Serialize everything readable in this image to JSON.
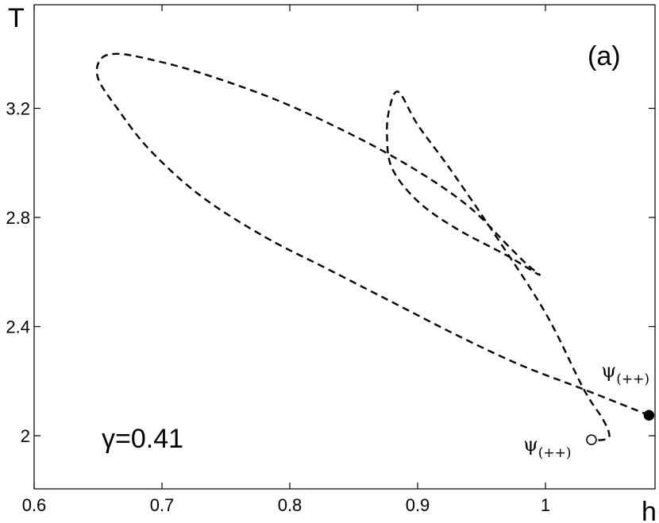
{
  "chart_data": {
    "type": "line",
    "title": "",
    "panel_label": "(a)",
    "parameter_label": "γ=0.41",
    "xlabel": "h",
    "ylabel": "T",
    "xlim": [
      0.6,
      1.085
    ],
    "ylim": [
      1.82,
      3.44
    ],
    "xticks": [
      0.6,
      0.7,
      0.8,
      0.9,
      1.0
    ],
    "xtick_labels": [
      "0.6",
      "0.7",
      "0.8",
      "0.9",
      "1"
    ],
    "yticks": [
      2.0,
      2.4,
      2.8,
      3.2
    ],
    "ytick_labels": [
      "2",
      "2.4",
      "2.8",
      "3.2"
    ],
    "grid": false,
    "series": [
      {
        "style": "dashed",
        "color": "#000000",
        "x": [
          1.081,
          1.03,
          0.98,
          0.93,
          0.88,
          0.83,
          0.78,
          0.73,
          0.69,
          0.665,
          0.65,
          0.652,
          0.665,
          0.69,
          0.73,
          0.79,
          0.85,
          0.9,
          0.94,
          0.97,
          0.985,
          0.995,
          0.97,
          0.93,
          0.9,
          0.88,
          0.876,
          0.878,
          0.885,
          0.9,
          0.925,
          0.96,
          1.0,
          1.03,
          1.045,
          1.05,
          1.045,
          1.037
        ],
        "y": [
          2.075,
          2.17,
          2.26,
          2.37,
          2.49,
          2.61,
          2.73,
          2.88,
          3.05,
          3.2,
          3.31,
          3.38,
          3.4,
          3.38,
          3.33,
          3.23,
          3.1,
          2.97,
          2.84,
          2.7,
          2.63,
          2.59,
          2.66,
          2.76,
          2.86,
          2.98,
          3.1,
          3.2,
          3.26,
          3.14,
          2.98,
          2.74,
          2.45,
          2.17,
          2.06,
          2.0,
          1.985,
          1.985
        ]
      }
    ],
    "points": [
      {
        "name": "ψ(++)",
        "label_main": "ψ",
        "label_sub": "(++)",
        "x": 1.081,
        "y": 2.075,
        "marker": "filled-circle"
      },
      {
        "name": "ψ(++)",
        "label_main": "ψ",
        "label_sub": "(++)",
        "x": 1.036,
        "y": 1.985,
        "marker": "open-circle"
      }
    ]
  }
}
